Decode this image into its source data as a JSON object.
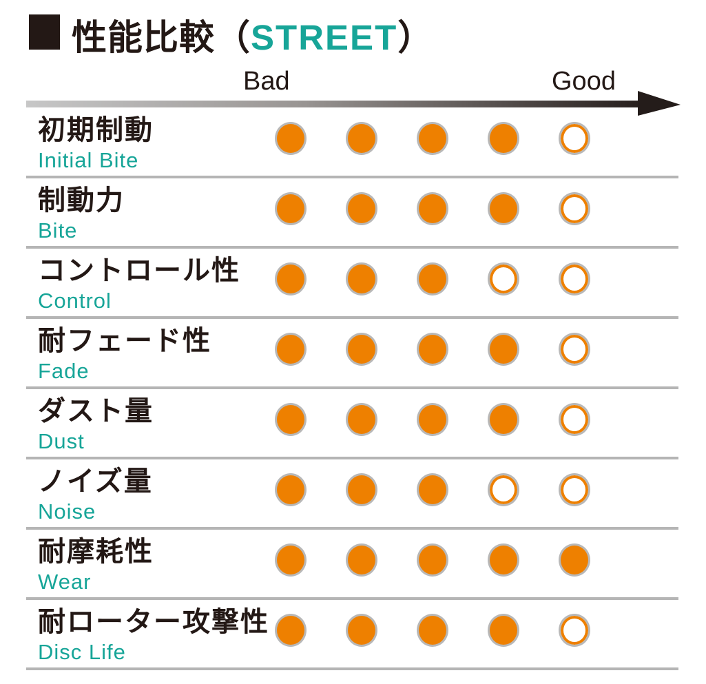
{
  "header": {
    "title_jp": "性能比較",
    "paren_open": "（",
    "title_accent": "STREET",
    "paren_close": "）"
  },
  "scale": {
    "bad_label": "Bad",
    "good_label": "Good",
    "max": 5
  },
  "rows": [
    {
      "label_jp": "初期制動",
      "label_en": "Initial Bite",
      "rating": 4
    },
    {
      "label_jp": "制動力",
      "label_en": "Bite",
      "rating": 4
    },
    {
      "label_jp": "コントロール性",
      "label_en": "Control",
      "rating": 3
    },
    {
      "label_jp": "耐フェード性",
      "label_en": "Fade",
      "rating": 4
    },
    {
      "label_jp": "ダスト量",
      "label_en": "Dust",
      "rating": 4
    },
    {
      "label_jp": "ノイズ量",
      "label_en": "Noise",
      "rating": 3
    },
    {
      "label_jp": "耐摩耗性",
      "label_en": "Wear",
      "rating": 5
    },
    {
      "label_jp": "耐ローター攻撃性",
      "label_en": "Disc Life",
      "rating": 4
    }
  ],
  "colors": {
    "accent_teal": "#17A598",
    "dot_orange": "#EE8000",
    "ring_gray": "#B8B8B8",
    "line_gray": "#B5B5B5",
    "text_black": "#231815"
  },
  "chart_data": {
    "type": "table",
    "title": "性能比較（STREET）",
    "categories": [
      "初期制動 (Initial Bite)",
      "制動力 (Bite)",
      "コントロール性 (Control)",
      "耐フェード性 (Fade)",
      "ダスト量 (Dust)",
      "ノイズ量 (Noise)",
      "耐摩耗性 (Wear)",
      "耐ローター攻撃性 (Disc Life)"
    ],
    "values": [
      4,
      4,
      3,
      4,
      4,
      3,
      5,
      4
    ],
    "value_range": [
      0,
      5
    ],
    "scale_min_label": "Bad",
    "scale_max_label": "Good",
    "legend_position": "none",
    "grid": "row-separators"
  }
}
